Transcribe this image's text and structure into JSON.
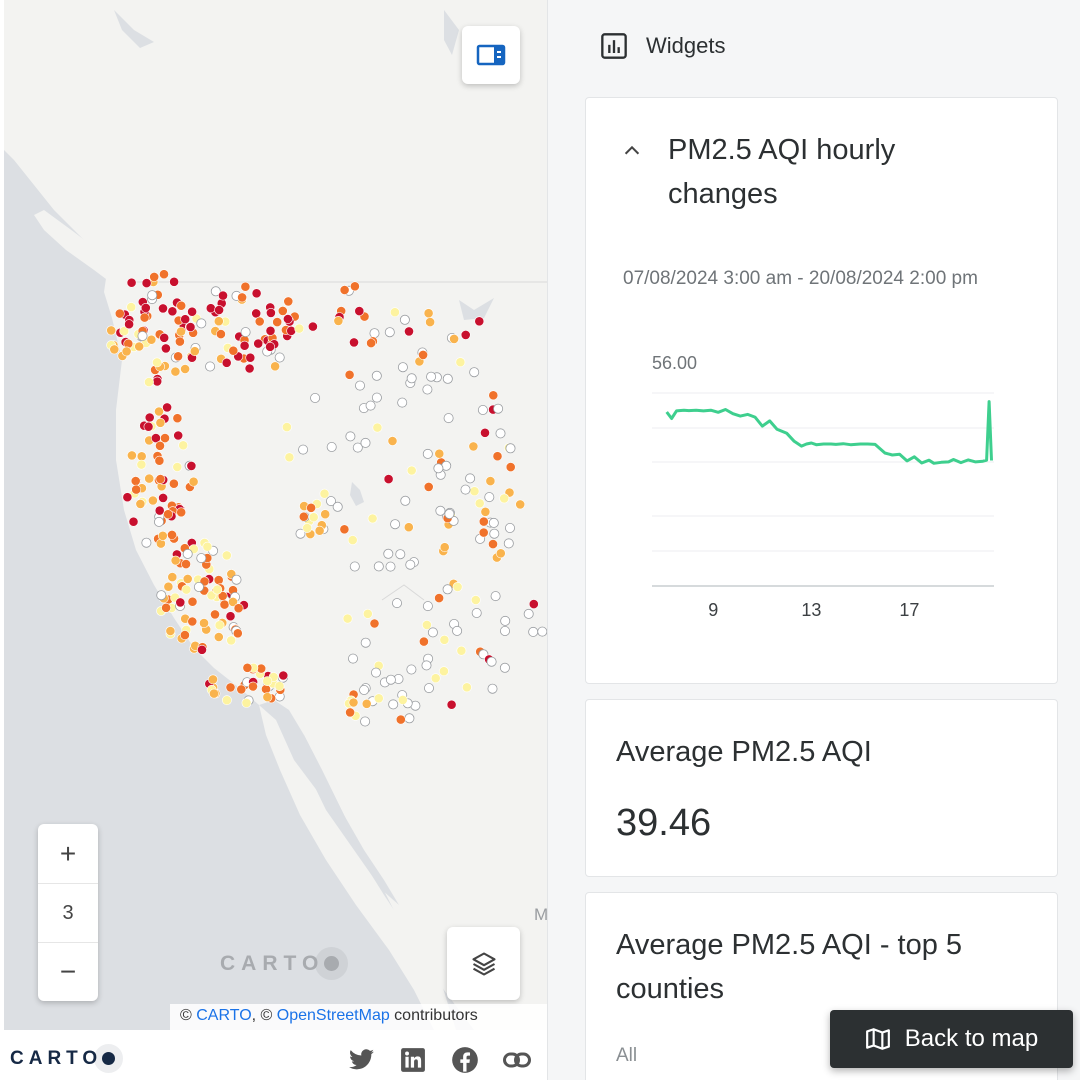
{
  "map": {
    "zoom_in": "+",
    "zoom_level": "3",
    "zoom_out": "−",
    "watermark": "CARTO",
    "edge_label": "M",
    "attribution": {
      "prefix": "© ",
      "carto": "CARTO",
      "sep": ", © ",
      "osm": "OpenStreetMap",
      "suffix": " contributors"
    },
    "legend_colors": {
      "unhealthy": "#c8102e",
      "sensitive": "#f0722b",
      "moderate": "#f9b34d",
      "good": "#fdf3a0",
      "no_data": "#ffffff"
    }
  },
  "footer": {
    "logo": "CARTO",
    "social_icons": [
      "twitter-icon",
      "linkedin-icon",
      "facebook-icon",
      "link-icon"
    ]
  },
  "panel": {
    "header": "Widgets",
    "chart_card": {
      "title": "PM2.5 AQI hourly changes",
      "range": "07/08/2024 3:00 am - 20/08/2024 2:00 pm"
    },
    "avg_card": {
      "title": "Average PM2.5 AQI",
      "value": "39.46"
    },
    "top5_card": {
      "title": "Average PM2.5 AQI - top 5 counties",
      "filter": "All"
    },
    "back_button": "Back to map"
  },
  "chart_data": {
    "type": "line",
    "title": "",
    "ymax_label": "56.00",
    "x_ticks": [
      "9",
      "13",
      "17"
    ],
    "color": "#3ecf8e",
    "x": [
      7.1,
      7.3,
      7.5,
      7.8,
      8.0,
      8.3,
      8.6,
      8.9,
      9.2,
      9.5,
      9.8,
      10.1,
      10.4,
      10.7,
      11.0,
      11.3,
      11.6,
      12.0,
      12.3,
      12.6,
      12.8,
      13.0,
      13.2,
      13.5,
      13.8,
      14.0,
      14.3,
      14.6,
      15.0,
      15.3,
      15.6,
      16.0,
      16.3,
      16.6,
      16.9,
      17.2,
      17.5,
      17.8,
      18.0,
      18.3,
      18.6,
      18.8,
      19.1,
      19.4,
      19.7,
      20.0,
      20.15,
      20.25,
      20.35
    ],
    "y": [
      50.5,
      48.6,
      50.8,
      51.0,
      50.9,
      51.0,
      50.8,
      51.0,
      50.4,
      51.2,
      50.0,
      49.3,
      49.8,
      49.0,
      46.4,
      47.9,
      45.5,
      44.3,
      42.0,
      40.6,
      41.2,
      41.5,
      41.0,
      41.2,
      41.2,
      41.1,
      41.3,
      41.0,
      41.2,
      41.2,
      41.1,
      38.6,
      38.0,
      38.2,
      36.3,
      37.5,
      35.7,
      36.5,
      35.6,
      35.9,
      36.0,
      36.7,
      35.8,
      36.6,
      36.0,
      36.2,
      36.5,
      53.5,
      36.4
    ],
    "ylim": [
      0,
      56
    ]
  }
}
